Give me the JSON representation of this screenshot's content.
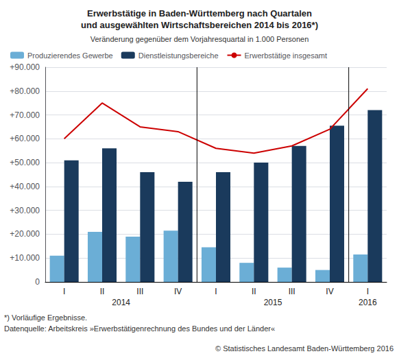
{
  "chart_data": {
    "type": "bar",
    "title": "Erwerbstätige in Baden-Württemberg nach Quartalen\nund ausgewählten Wirtschaftsbereichen 2014 bis 2016*)",
    "subtitle": "Veränderung gegenüber dem Vorjahresquartal in 1.000 Personen",
    "categories": [
      "I",
      "II",
      "III",
      "IV",
      "I",
      "II",
      "III",
      "IV",
      "I"
    ],
    "groups": [
      {
        "label": "2014",
        "size": 4
      },
      {
        "label": "2015",
        "size": 4
      },
      {
        "label": "2016",
        "size": 1
      }
    ],
    "series": [
      {
        "name": "Produzierendes Gewerbe",
        "type": "bar",
        "color": "#6baed6",
        "values": [
          11000,
          21000,
          19000,
          21500,
          14500,
          8000,
          6000,
          5000,
          11500
        ]
      },
      {
        "name": "Dienstleistungsbereiche",
        "type": "bar",
        "color": "#1a3a5c",
        "values": [
          51000,
          56000,
          46000,
          42000,
          46000,
          50000,
          57000,
          65500,
          72000
        ]
      },
      {
        "name": "Erwerbstätige insgesamt",
        "type": "line",
        "color": "#cc0000",
        "values": [
          60000,
          75000,
          65000,
          63000,
          56000,
          54000,
          57000,
          64000,
          81000
        ]
      }
    ],
    "ylim": [
      0,
      90000
    ],
    "yticks": [
      0,
      {
        "value": 10000,
        "label": "+10.000"
      },
      {
        "value": 20000,
        "label": "+20.000"
      },
      {
        "value": 30000,
        "label": "+30.000"
      },
      {
        "value": 40000,
        "label": "+40.000"
      },
      {
        "value": 50000,
        "label": "+50.000"
      },
      {
        "value": 60000,
        "label": "+60.000"
      },
      {
        "value": 70000,
        "label": "+70.000"
      },
      {
        "value": 80000,
        "label": "+80.000"
      },
      {
        "value": 90000,
        "label": "+90.000"
      }
    ],
    "grid": true,
    "legend": "upper left",
    "annotations": [
      "*) Vorläufige Ergebnisse.",
      "Datenquelle: Arbeitskreis »Erwerbstätigenrechnung des Bundes und der Länder«",
      "© Statistisches Landesamt Baden-Württemberg 2016"
    ]
  }
}
